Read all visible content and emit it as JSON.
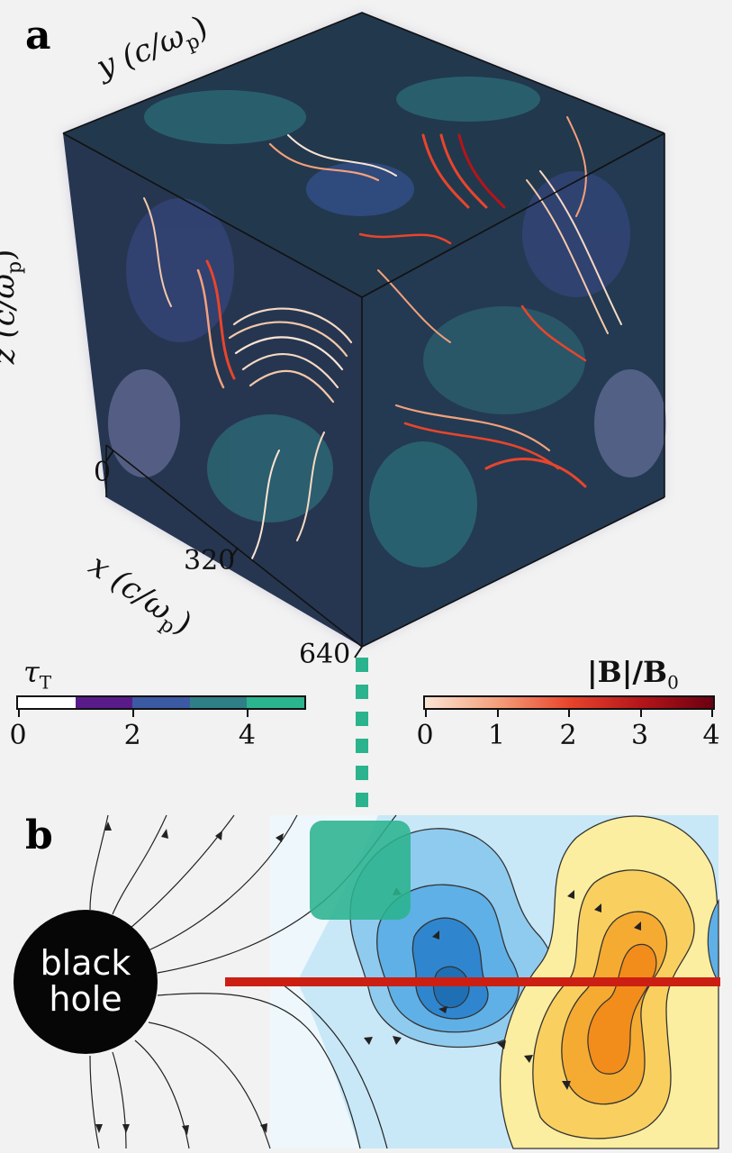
{
  "panel_a": {
    "label": "a",
    "axis_y": "y (c/ω",
    "axis_y_sub": "p",
    "axis_z": "z (c/ω",
    "axis_z_sub": "p",
    "axis_x": "x (c/ω",
    "axis_x_sub": "p",
    "paren_close": ")",
    "x_ticks": [
      "0",
      "320",
      "640"
    ]
  },
  "colorbar_tau": {
    "title_main": "τ",
    "title_sub": "T",
    "colors": [
      "#ffffff",
      "#5a1b8a",
      "#3b5aa3",
      "#2f7f86",
      "#2bb58e"
    ],
    "ticks": [
      "0",
      "2",
      "4"
    ],
    "range": [
      0,
      5
    ]
  },
  "colorbar_B": {
    "title": "|B|/B",
    "title_sub": "0",
    "gradient": [
      "#fbe4d4",
      "#f4a07c",
      "#e8452c",
      "#b4151a",
      "#6b0010"
    ],
    "ticks": [
      "0",
      "1",
      "2",
      "3",
      "4"
    ],
    "range": [
      0,
      4
    ]
  },
  "panel_b": {
    "label": "b",
    "black_hole_line1": "black",
    "black_hole_line2": "hole",
    "zoom_box_color": "#2bb38e",
    "red_line_color": "#cc1f14"
  }
}
